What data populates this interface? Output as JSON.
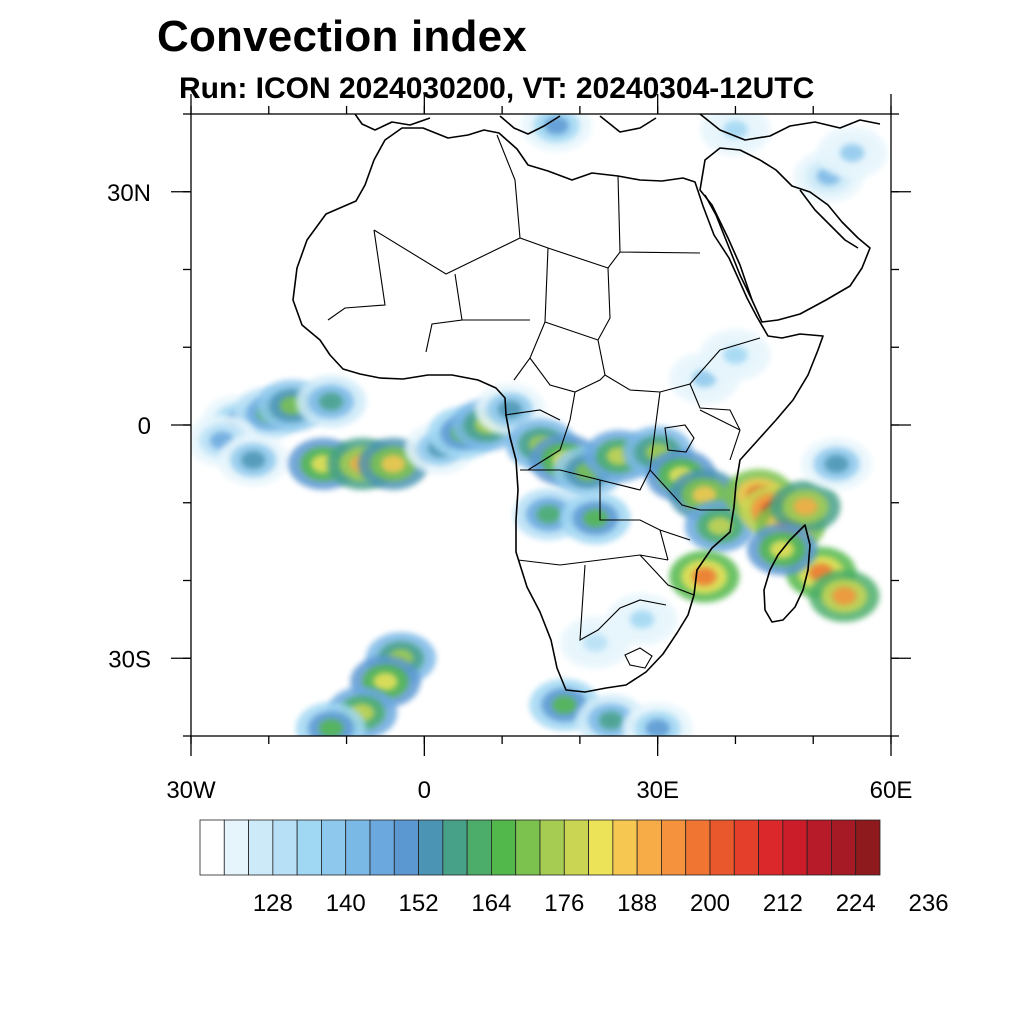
{
  "title": "Convection index",
  "subtitle": "Run: ICON 2024030200,  VT: 20240304-12UTC",
  "map": {
    "lon_range": [
      -30,
      60
    ],
    "lat_range": [
      -40,
      40
    ],
    "x_ticks": [
      {
        "lon": -30,
        "label": "30W"
      },
      {
        "lon": 0,
        "label": "0"
      },
      {
        "lon": 30,
        "label": "30E"
      },
      {
        "lon": 60,
        "label": "60E"
      }
    ],
    "y_ticks": [
      {
        "lat": 30,
        "label": "30N"
      },
      {
        "lat": 0,
        "label": "0"
      },
      {
        "lat": -30,
        "label": "30S"
      }
    ],
    "minor_lon_step": 10,
    "minor_lat_step": 10
  },
  "colorbar": {
    "colors": [
      "#ffffff",
      "#e6f5fc",
      "#cdeaf8",
      "#b7e0f6",
      "#a0d7f3",
      "#8ec8ec",
      "#7ab8e6",
      "#6aa8de",
      "#5b98d2",
      "#4c94b3",
      "#47a088",
      "#4cad6b",
      "#52b84c",
      "#7cc24e",
      "#a6cd51",
      "#cad653",
      "#ede358",
      "#f7c851",
      "#f8ac47",
      "#f5923d",
      "#f07533",
      "#e9582c",
      "#e33f2a",
      "#da282b",
      "#cb1c2a",
      "#b71a29",
      "#a61a25",
      "#8f1a1e"
    ],
    "labels": [
      "128",
      "140",
      "152",
      "164",
      "176",
      "188",
      "200",
      "212",
      "224",
      "236"
    ]
  },
  "convection_cells": [
    {
      "lon": -24,
      "lat": 0.5,
      "level": 8
    },
    {
      "lon": -20,
      "lat": 1.5,
      "level": 11
    },
    {
      "lon": -17,
      "lat": 2.5,
      "level": 13
    },
    {
      "lon": -12,
      "lat": 3.0,
      "level": 10
    },
    {
      "lon": -26,
      "lat": -2.0,
      "level": 7
    },
    {
      "lon": -22,
      "lat": -4.5,
      "level": 9
    },
    {
      "lon": -13,
      "lat": -5.0,
      "level": 16
    },
    {
      "lon": -8,
      "lat": -5.0,
      "level": 18
    },
    {
      "lon": -4,
      "lat": -5.0,
      "level": 17
    },
    {
      "lon": 2,
      "lat": -3.0,
      "level": 9
    },
    {
      "lon": 5,
      "lat": -1.0,
      "level": 12
    },
    {
      "lon": 8,
      "lat": 0.0,
      "level": 14
    },
    {
      "lon": 11,
      "lat": 2.0,
      "level": 9
    },
    {
      "lon": 15,
      "lat": -2.5,
      "level": 14
    },
    {
      "lon": 18,
      "lat": -4.5,
      "level": 16
    },
    {
      "lon": 21,
      "lat": -6.0,
      "level": 13
    },
    {
      "lon": 25,
      "lat": -4.0,
      "level": 15
    },
    {
      "lon": 30,
      "lat": -3.5,
      "level": 14
    },
    {
      "lon": 33,
      "lat": -6.5,
      "level": 16
    },
    {
      "lon": 36,
      "lat": -9.0,
      "level": 17
    },
    {
      "lon": 38,
      "lat": -13.0,
      "level": 15
    },
    {
      "lon": 16,
      "lat": -11.5,
      "level": 11
    },
    {
      "lon": 22,
      "lat": -12.0,
      "level": 12
    },
    {
      "lon": 36,
      "lat": -19.5,
      "level": 20
    },
    {
      "lon": 43,
      "lat": -9.0,
      "level": 21
    },
    {
      "lon": 45,
      "lat": -11.0,
      "level": 23
    },
    {
      "lon": 47,
      "lat": -13.0,
      "level": 21
    },
    {
      "lon": 49,
      "lat": -10.5,
      "level": 18
    },
    {
      "lon": 53,
      "lat": -5.0,
      "level": 9
    },
    {
      "lon": 51,
      "lat": -19.0,
      "level": 20
    },
    {
      "lon": 54,
      "lat": -22.0,
      "level": 19
    },
    {
      "lon": 46,
      "lat": -16.0,
      "level": 16
    },
    {
      "lon": 36,
      "lat": 6.0,
      "level": 5
    },
    {
      "lon": 40,
      "lat": 9.0,
      "level": 4
    },
    {
      "lon": 52,
      "lat": 32.0,
      "level": 6
    },
    {
      "lon": 55,
      "lat": 35.0,
      "level": 5
    },
    {
      "lon": 17,
      "lat": 38.5,
      "level": 8
    },
    {
      "lon": 40,
      "lat": 38.0,
      "level": 4
    },
    {
      "lon": -3,
      "lat": -30.0,
      "level": 14
    },
    {
      "lon": -5,
      "lat": -33.0,
      "level": 16
    },
    {
      "lon": -8,
      "lat": -37.0,
      "level": 15
    },
    {
      "lon": -12,
      "lat": -39.0,
      "level": 12
    },
    {
      "lon": 18,
      "lat": -36.0,
      "level": 12
    },
    {
      "lon": 24,
      "lat": -38.0,
      "level": 10
    },
    {
      "lon": 30,
      "lat": -39.0,
      "level": 8
    },
    {
      "lon": 28,
      "lat": -25.0,
      "level": 4
    },
    {
      "lon": 22,
      "lat": -28.0,
      "level": 3
    }
  ]
}
